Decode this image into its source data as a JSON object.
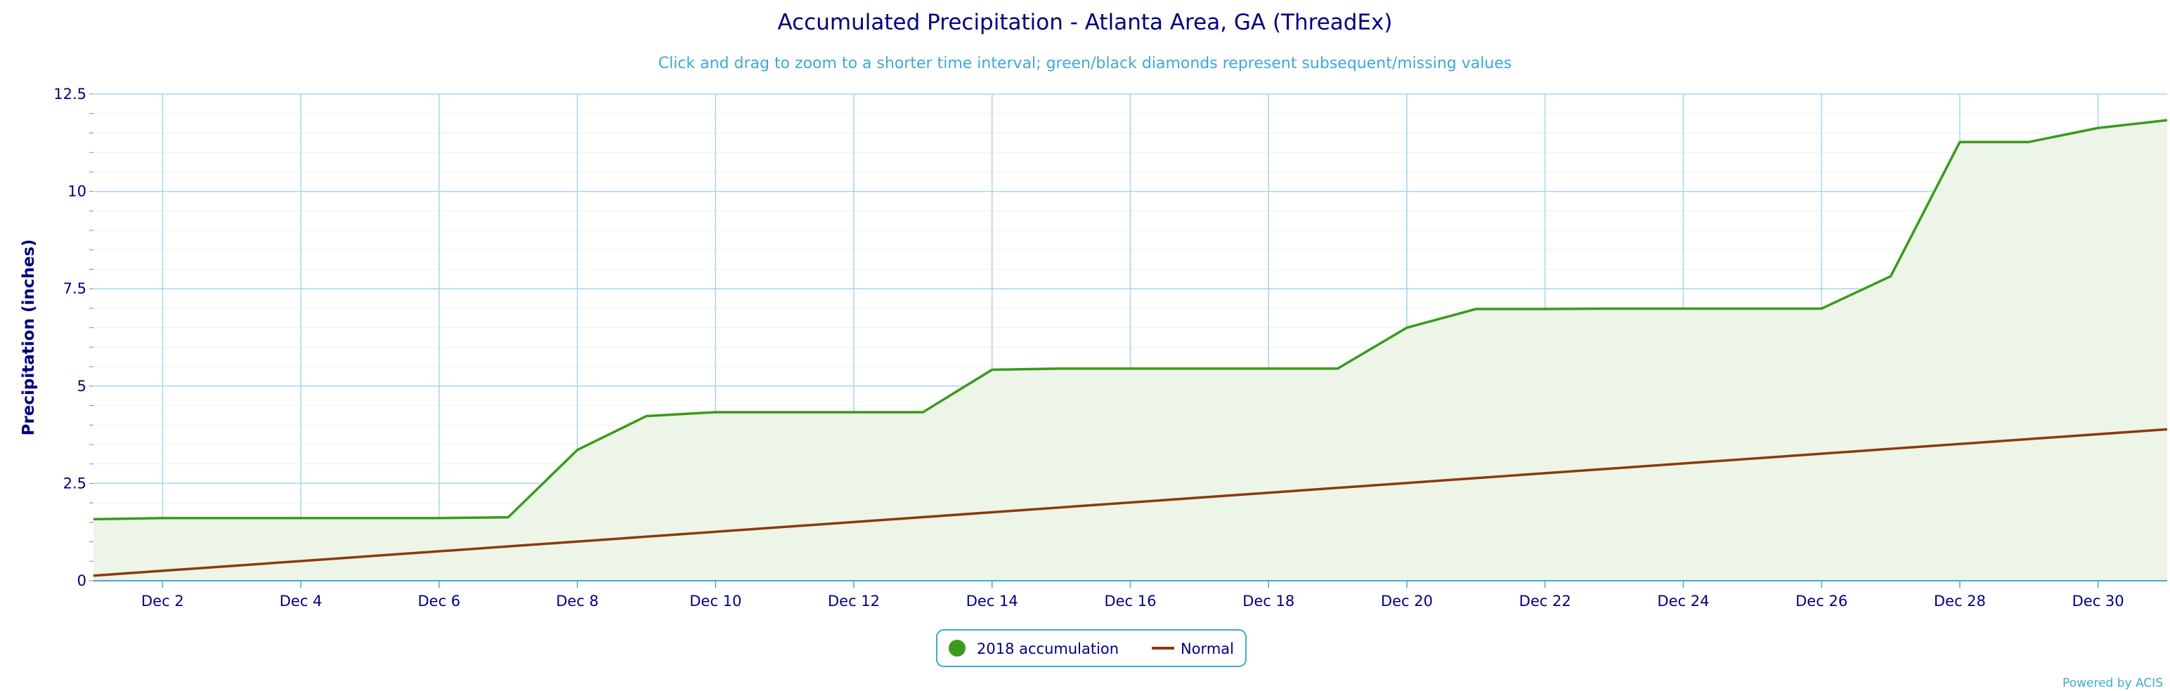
{
  "chart_data": {
    "type": "area",
    "title": "Accumulated Precipitation - Atlanta Area, GA (ThreadEx)",
    "subtitle": "Click and drag to zoom to a shorter time interval; green/black diamonds represent subsequent/missing values",
    "ylabel": "Precipitation (inches)",
    "xlabel": "",
    "xlim": [
      1,
      31
    ],
    "ylim": [
      0,
      12.5
    ],
    "yticks": [
      0,
      2.5,
      5,
      7.5,
      10,
      12.5
    ],
    "ytick_labels": [
      "0",
      "2.5",
      "5",
      "7.5",
      "10",
      "12.5"
    ],
    "xticks": [
      2,
      4,
      6,
      8,
      10,
      12,
      14,
      16,
      18,
      20,
      22,
      24,
      26,
      28,
      30
    ],
    "xtick_labels": [
      "Dec 2",
      "Dec 4",
      "Dec 6",
      "Dec 8",
      "Dec 10",
      "Dec 12",
      "Dec 14",
      "Dec 16",
      "Dec 18",
      "Dec 20",
      "Dec 22",
      "Dec 24",
      "Dec 26",
      "Dec 28",
      "Dec 30"
    ],
    "grid": true,
    "legend_position": "bottom-center",
    "series": [
      {
        "name": "2018 accumulation",
        "color": "#3a9a1b",
        "fill": "#edf5e8",
        "x": [
          1,
          2,
          3,
          4,
          5,
          6,
          7,
          8,
          9,
          10,
          11,
          12,
          13,
          14,
          15,
          16,
          17,
          18,
          19,
          20,
          21,
          22,
          23,
          24,
          25,
          26,
          27,
          28,
          29,
          30,
          31
        ],
        "values": [
          1.58,
          1.61,
          1.61,
          1.61,
          1.61,
          1.61,
          1.63,
          3.36,
          4.23,
          4.33,
          4.33,
          4.33,
          4.33,
          5.42,
          5.45,
          5.45,
          5.45,
          5.45,
          5.45,
          6.5,
          6.98,
          6.98,
          6.99,
          6.99,
          6.99,
          6.99,
          7.82,
          11.27,
          11.27,
          11.63,
          11.83
        ]
      },
      {
        "name": "Normal",
        "color": "#8b3a0e",
        "x": [
          1,
          31
        ],
        "values": [
          0.13,
          3.89
        ]
      }
    ]
  },
  "credit": "Powered by ACIS"
}
